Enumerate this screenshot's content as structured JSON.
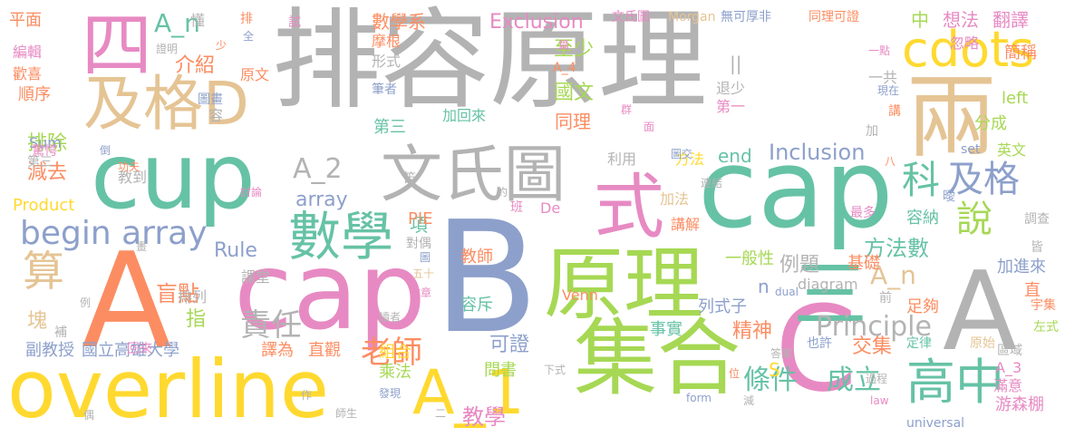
{
  "words": [
    {
      "text": "排容原理",
      "color": "#b3b3b3"
    },
    {
      "text": "cap",
      "color": "#66c2a5"
    },
    {
      "text": "B",
      "color": "#8da0cb"
    },
    {
      "text": "A",
      "color": "#fc8d62"
    },
    {
      "text": "cap",
      "color": "#e78ac3"
    },
    {
      "text": "集合",
      "color": "#a6d854"
    },
    {
      "text": "overline",
      "color": "#ffd92f"
    },
    {
      "text": "原理",
      "color": "#a6d854"
    },
    {
      "text": "A",
      "color": "#b3b3b3"
    },
    {
      "text": "C",
      "color": "#e78ac3"
    },
    {
      "text": "cup",
      "color": "#66c2a5"
    },
    {
      "text": "兩",
      "color": "#e5c494"
    },
    {
      "text": "A_1",
      "color": "#ffd92f"
    },
    {
      "text": "文氏圖",
      "color": "#b3b3b3"
    },
    {
      "text": "式",
      "color": "#e78ac3"
    },
    {
      "text": "數學",
      "color": "#66c2a5"
    },
    {
      "text": "及格D",
      "color": "#e5c494"
    },
    {
      "text": "三",
      "color": "#66c2a5"
    },
    {
      "text": "四",
      "color": "#e78ac3"
    },
    {
      "text": "高中",
      "color": "#66c2a5"
    },
    {
      "text": "cdots",
      "color": "#ffd92f"
    },
    {
      "text": "科",
      "color": "#66c2a5"
    },
    {
      "text": "及格",
      "color": "#8da0cb"
    },
    {
      "text": "說",
      "color": "#a6d854"
    },
    {
      "text": "算",
      "color": "#e5c494"
    },
    {
      "text": "begin array",
      "color": "#8da0cb"
    },
    {
      "text": "老師",
      "color": "#fc8d62"
    },
    {
      "text": "責任",
      "color": "#b3b3b3"
    },
    {
      "text": "Principle",
      "color": "#b3b3b3"
    },
    {
      "text": "A_2",
      "color": "#b3b3b3"
    },
    {
      "text": "A_n",
      "color": "#66c2a5"
    },
    {
      "text": "A_n",
      "color": "#e5c494"
    },
    {
      "text": "條件",
      "color": "#66c2a5"
    },
    {
      "text": "成立",
      "color": "#66c2a5"
    },
    {
      "text": "方法數",
      "color": "#66c2a5"
    },
    {
      "text": "盲點",
      "color": "#fc8d62"
    },
    {
      "text": "Inclusion",
      "color": "#8da0cb"
    },
    {
      "text": "Exclusion",
      "color": "#e78ac3"
    },
    {
      "text": "教學",
      "color": "#e78ac3"
    },
    {
      "text": "精神",
      "color": "#fc8d62"
    },
    {
      "text": "可證",
      "color": "#8da0cb"
    },
    {
      "text": "例題",
      "color": "#b3b3b3"
    },
    {
      "text": "國文",
      "color": "#a6d854"
    },
    {
      "text": "至少",
      "color": "#a6d854"
    },
    {
      "text": "數學系",
      "color": "#fc8d62"
    },
    {
      "text": "同理",
      "color": "#fc8d62"
    },
    {
      "text": "介紹",
      "color": "#fc8d62"
    },
    {
      "text": "減去",
      "color": "#fc8d62"
    },
    {
      "text": "排除",
      "color": "#a6d854"
    },
    {
      "text": "平面",
      "color": "#fc8d62"
    },
    {
      "text": "指",
      "color": "#a6d854"
    },
    {
      "text": "array",
      "color": "#8da0cb"
    },
    {
      "text": "Rule",
      "color": "#8da0cb"
    },
    {
      "text": "交集",
      "color": "#fc8d62"
    },
    {
      "text": "容斥",
      "color": "#66c2a5"
    },
    {
      "text": "教師",
      "color": "#fc8d62"
    },
    {
      "text": "組合",
      "color": "#ffd92f"
    },
    {
      "text": "國立高雄大學",
      "color": "#8da0cb"
    },
    {
      "text": "副教授",
      "color": "#8da0cb"
    },
    {
      "text": "直觀",
      "color": "#fc8d62"
    },
    {
      "text": "譯為",
      "color": "#fc8d62"
    },
    {
      "text": "問書",
      "color": "#a6d854"
    },
    {
      "text": "乘法",
      "color": "#a6d854"
    },
    {
      "text": "課堂",
      "color": "#b3b3b3"
    },
    {
      "text": "排列",
      "color": "#b3b3b3"
    },
    {
      "text": "項",
      "color": "#66c2a5"
    },
    {
      "text": "一般性",
      "color": "#a6d854"
    },
    {
      "text": "列式子",
      "color": "#8da0cb"
    },
    {
      "text": "n",
      "color": "#8da0cb"
    },
    {
      "text": "方法",
      "color": "#ffd92f"
    },
    {
      "text": "end",
      "color": "#66c2a5"
    },
    {
      "text": "加法",
      "color": "#e5c494"
    },
    {
      "text": "講解",
      "color": "#fc8d62"
    },
    {
      "text": "分成",
      "color": "#a6d854"
    },
    {
      "text": "容納",
      "color": "#66c2a5"
    },
    {
      "text": "基礎",
      "color": "#fc8d62"
    },
    {
      "text": "足夠",
      "color": "#fc8d62"
    },
    {
      "text": "加進來",
      "color": "#8da0cb"
    },
    {
      "text": "事實",
      "color": "#66c2a5"
    },
    {
      "text": "中",
      "color": "#a6d854"
    },
    {
      "text": "想法",
      "color": "#e78ac3"
    },
    {
      "text": "翻譯",
      "color": "#e78ac3"
    },
    {
      "text": "簡稱",
      "color": "#fc8d62"
    },
    {
      "text": "游森棚",
      "color": "#e78ac3"
    },
    {
      "text": "英文",
      "color": "#a6d854"
    },
    {
      "text": "left",
      "color": "#a6d854"
    },
    {
      "text": "第三",
      "color": "#66c2a5"
    },
    {
      "text": "加回來",
      "color": "#66c2a5"
    },
    {
      "text": "PIE",
      "color": "#fc8d62"
    },
    {
      "text": "Venn",
      "color": "#fc8d62"
    },
    {
      "text": "diagram",
      "color": "#b3b3b3"
    },
    {
      "text": "S",
      "color": "#ffd92f"
    },
    {
      "text": "Sum",
      "color": "#8da0cb"
    },
    {
      "text": "Product",
      "color": "#ffd92f"
    },
    {
      "text": "教到",
      "color": "#b3b3b3"
    },
    {
      "text": "懂",
      "color": "#b3b3b3"
    },
    {
      "text": "順序",
      "color": "#fc8d62"
    },
    {
      "text": "編輯",
      "color": "#e78ac3"
    },
    {
      "text": "歡喜",
      "color": "#fc8d62"
    },
    {
      "text": "原文",
      "color": "#fc8d62"
    },
    {
      "text": "塊",
      "color": "#e5c494"
    },
    {
      "text": "補",
      "color": "#b3b3b3"
    },
    {
      "text": "也許",
      "color": "#8da0cb"
    },
    {
      "text": "定律",
      "color": "#66c2a5"
    },
    {
      "text": "原始",
      "color": "#e5c494"
    },
    {
      "text": "左式",
      "color": "#a6d854"
    },
    {
      "text": "宇集",
      "color": "#fc8d62"
    },
    {
      "text": "滿意",
      "color": "#e78ac3"
    },
    {
      "text": "A_3",
      "color": "#e78ac3"
    },
    {
      "text": "區域",
      "color": "#b3b3b3"
    },
    {
      "text": "直",
      "color": "#fc8d62"
    },
    {
      "text": "前",
      "color": "#b3b3b3"
    },
    {
      "text": "忽略",
      "color": "#e78ac3"
    },
    {
      "text": "退少",
      "color": "#b3b3b3"
    },
    {
      "text": "第一",
      "color": "#e78ac3"
    },
    {
      "text": "一共",
      "color": "#b3b3b3"
    },
    {
      "text": "利用",
      "color": "#b3b3b3"
    },
    {
      "text": "形式",
      "color": "#b3b3b3"
    },
    {
      "text": "試",
      "color": "#e78ac3"
    },
    {
      "text": "排",
      "color": "#fc8d62"
    },
    {
      "text": "無可厚非",
      "color": "#8da0cb"
    },
    {
      "text": "同理可證",
      "color": "#fc8d62"
    },
    {
      "text": "文氏圖",
      "color": "#e78ac3"
    },
    {
      "text": "Morgan",
      "color": "#e5c494"
    },
    {
      "text": "摩根",
      "color": "#fc8d62"
    },
    {
      "text": "A_4",
      "color": "#fc8d62"
    },
    {
      "text": "筆者",
      "color": "#8da0cb"
    },
    {
      "text": "圖畫",
      "color": "#8da0cb"
    },
    {
      "text": "容",
      "color": "#b3b3b3"
    },
    {
      "text": "第三",
      "color": "#b3b3b3"
    },
    {
      "text": "驚愕",
      "color": "#e78ac3"
    },
    {
      "text": "功夫",
      "color": "#fc8d62"
    },
    {
      "text": "討論",
      "color": "#e78ac3"
    },
    {
      "text": "倒",
      "color": "#8da0cb"
    },
    {
      "text": "笛",
      "color": "#b3b3b3"
    },
    {
      "text": "約",
      "color": "#b3b3b3"
    },
    {
      "text": "班",
      "color": "#e78ac3"
    },
    {
      "text": "De",
      "color": "#e78ac3"
    },
    {
      "text": "對偶",
      "color": "#b3b3b3"
    },
    {
      "text": "五十",
      "color": "#e5c494"
    },
    {
      "text": "文章",
      "color": "#e78ac3"
    },
    {
      "text": "圖",
      "color": "#8da0cb"
    },
    {
      "text": "面",
      "color": "#e78ac3"
    },
    {
      "text": "群",
      "color": "#e78ac3"
    },
    {
      "text": "圖交",
      "color": "#8da0cb"
    },
    {
      "text": "連結",
      "color": "#b3b3b3"
    },
    {
      "text": "set",
      "color": "#8da0cb"
    },
    {
      "text": "最多",
      "color": "#e78ac3"
    },
    {
      "text": "曖",
      "color": "#8da0cb"
    },
    {
      "text": "調查",
      "color": "#b3b3b3"
    },
    {
      "text": "皆",
      "color": "#b3b3b3"
    },
    {
      "text": "dual",
      "color": "#8da0cb"
    },
    {
      "text": "讀者",
      "color": "#b3b3b3"
    },
    {
      "text": "發現",
      "color": "#8da0cb"
    },
    {
      "text": "下式",
      "color": "#b3b3b3"
    },
    {
      "text": "位",
      "color": "#fc8d62"
    },
    {
      "text": "form",
      "color": "#8da0cb"
    },
    {
      "text": "減",
      "color": "#b3b3b3"
    },
    {
      "text": "答案",
      "color": "#b3b3b3"
    },
    {
      "text": "過程",
      "color": "#b3b3b3"
    },
    {
      "text": "law",
      "color": "#e78ac3"
    },
    {
      "text": "universal",
      "color": "#8da0cb"
    },
    {
      "text": "師生",
      "color": "#b3b3b3"
    },
    {
      "text": "二",
      "color": "#b3b3b3"
    },
    {
      "text": "作",
      "color": "#b3b3b3"
    },
    {
      "text": "偶",
      "color": "#b3b3b3"
    },
    {
      "text": "畫",
      "color": "#b3b3b3"
    },
    {
      "text": "例",
      "color": "#b3b3b3"
    },
    {
      "text": "回來",
      "color": "#e78ac3"
    },
    {
      "text": "少",
      "color": "#fc8d62"
    },
    {
      "text": "全",
      "color": "#8da0cb"
    },
    {
      "text": "證明",
      "color": "#b3b3b3"
    },
    {
      "text": "篇",
      "color": "#e78ac3"
    },
    {
      "text": "講",
      "color": "#fc8d62"
    },
    {
      "text": "現在",
      "color": "#8da0cb"
    },
    {
      "text": "一點",
      "color": "#e78ac3"
    },
    {
      "text": "八",
      "color": "#fc8d62"
    },
    {
      "text": "加",
      "color": "#b3b3b3"
    },
    {
      "text": "||",
      "color": "#b3b3b3"
    }
  ]
}
